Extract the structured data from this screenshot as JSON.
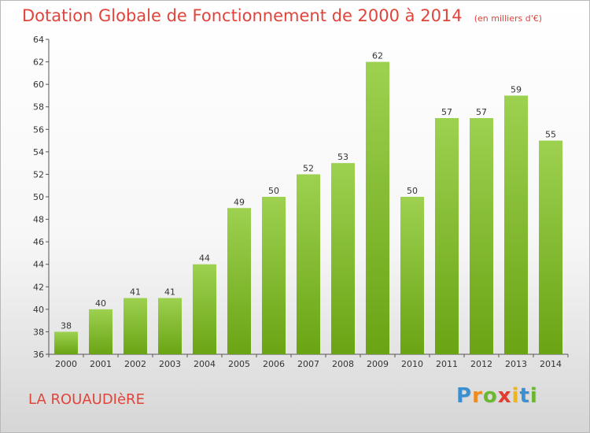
{
  "chart_data": {
    "type": "bar",
    "title": "Dotation Globale de Fonctionnement de 2000 à 2014",
    "subtitle": "(en milliers d'€)",
    "categories": [
      "2000",
      "2001",
      "2002",
      "2003",
      "2004",
      "2005",
      "2006",
      "2007",
      "2008",
      "2009",
      "2010",
      "2011",
      "2012",
      "2013",
      "2014"
    ],
    "values": [
      38,
      40,
      41,
      41,
      44,
      49,
      50,
      52,
      53,
      62,
      50,
      57,
      57,
      59,
      55
    ],
    "xlabel": "",
    "ylabel": "",
    "ylim": [
      36,
      64
    ],
    "yticks": [
      36,
      38,
      40,
      42,
      44,
      46,
      48,
      50,
      52,
      54,
      56,
      58,
      60,
      62,
      64
    ],
    "grid": false,
    "legend": "none",
    "bar_color_top": "#9dd150",
    "bar_color_bottom": "#6aa414"
  },
  "footer": {
    "commune": "LA ROUAUDIèRE",
    "logo_letters": [
      {
        "char": "P",
        "color": "#3a8fd0"
      },
      {
        "char": "r",
        "color": "#f08a1c"
      },
      {
        "char": "o",
        "color": "#6ab82e"
      },
      {
        "char": "x",
        "color": "#e23b2f"
      },
      {
        "char": "i",
        "color": "#f0b51c"
      },
      {
        "char": "t",
        "color": "#3a8fd0"
      },
      {
        "char": "i",
        "color": "#6ab82e"
      }
    ]
  }
}
